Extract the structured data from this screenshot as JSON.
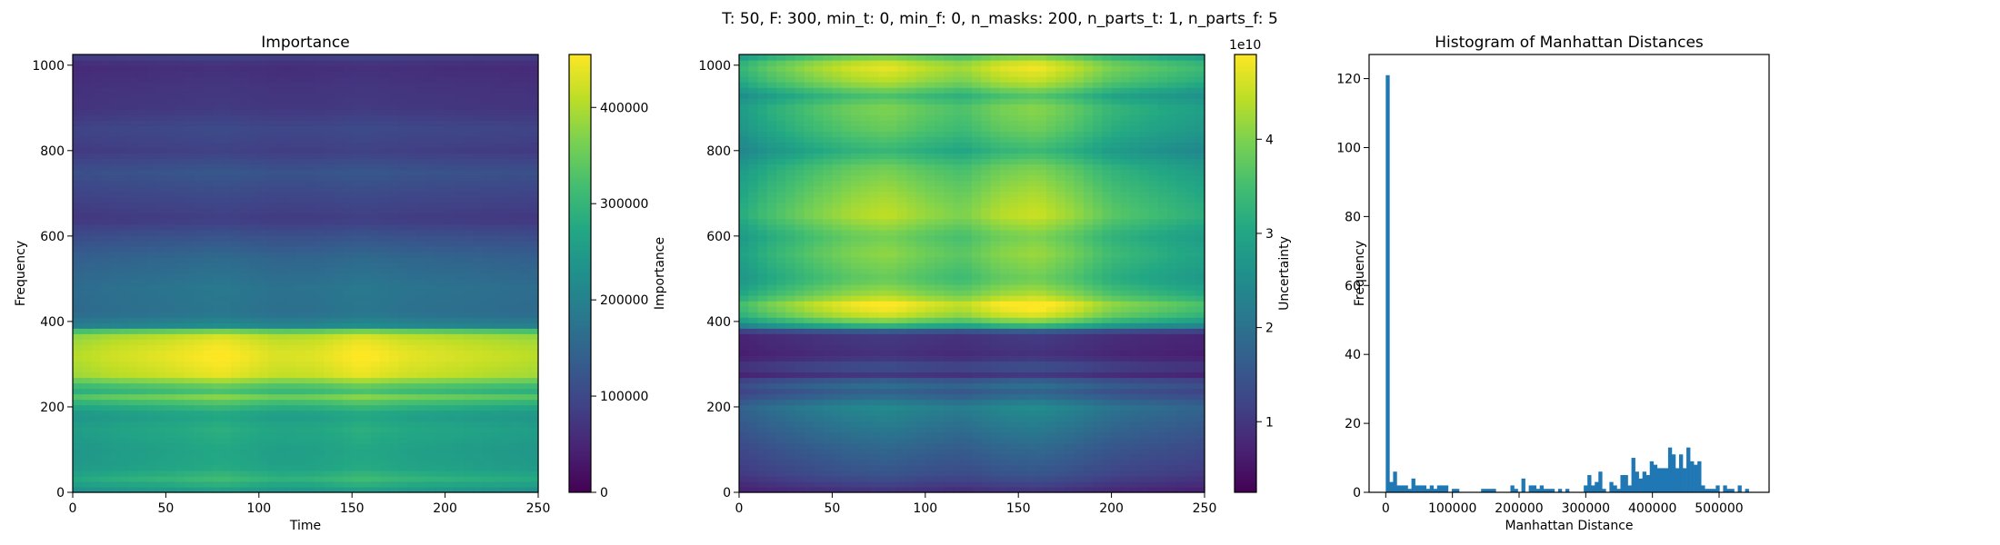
{
  "suptitle": "T: 50, F: 300, min_t: 0, min_f: 0, n_masks: 200, n_parts_t: 1, n_parts_f: 5",
  "chart_data": [
    {
      "type": "heatmap",
      "title": "Importance",
      "xlabel": "Time",
      "ylabel": "Frequency",
      "colorbar_label": "Importance",
      "colormap": "viridis",
      "xlim": [
        0,
        250
      ],
      "ylim": [
        0,
        1025
      ],
      "xticks": [
        0,
        50,
        100,
        150,
        200,
        250
      ],
      "yticks": [
        0,
        200,
        400,
        600,
        800,
        1000
      ],
      "clim": [
        0,
        455000
      ],
      "colorbar_ticks": [
        0,
        100000,
        200000,
        300000,
        400000
      ],
      "colorbar_ticklabels": [
        "0",
        "100000",
        "200000",
        "300000",
        "400000"
      ],
      "freq_profile": [
        [
          0,
          235000
        ],
        [
          30,
          300000
        ],
        [
          60,
          265000
        ],
        [
          100,
          260000
        ],
        [
          150,
          275000
        ],
        [
          180,
          255000
        ],
        [
          205,
          300000
        ],
        [
          225,
          360000
        ],
        [
          240,
          300000
        ],
        [
          275,
          420000
        ],
        [
          320,
          440000
        ],
        [
          350,
          425000
        ],
        [
          375,
          400000
        ],
        [
          385,
          220000
        ],
        [
          420,
          170000
        ],
        [
          480,
          175000
        ],
        [
          550,
          150000
        ],
        [
          600,
          115000
        ],
        [
          640,
          80000
        ],
        [
          700,
          100000
        ],
        [
          750,
          120000
        ],
        [
          800,
          85000
        ],
        [
          850,
          100000
        ],
        [
          900,
          75000
        ],
        [
          950,
          70000
        ],
        [
          1000,
          60000
        ],
        [
          1025,
          95000
        ]
      ],
      "time_profile": [
        [
          0,
          0.92
        ],
        [
          20,
          0.96
        ],
        [
          50,
          1.0
        ],
        [
          80,
          1.05
        ],
        [
          110,
          0.98
        ],
        [
          130,
          0.99
        ],
        [
          155,
          1.05
        ],
        [
          180,
          1.0
        ],
        [
          210,
          0.97
        ],
        [
          230,
          0.95
        ],
        [
          250,
          0.93
        ]
      ]
    },
    {
      "type": "heatmap",
      "title": "",
      "xlabel": "",
      "ylabel": "",
      "colorbar_label": "Uncertainty",
      "colorbar_offset_text": "1e10",
      "colormap": "viridis",
      "xlim": [
        0,
        250
      ],
      "ylim": [
        0,
        1025
      ],
      "xticks": [
        0,
        50,
        100,
        150,
        200,
        250
      ],
      "yticks": [
        0,
        200,
        400,
        600,
        800,
        1000
      ],
      "clim": [
        0.25,
        4.9
      ],
      "colorbar_ticks": [
        1,
        2,
        3,
        4
      ],
      "colorbar_ticklabels": [
        "1",
        "2",
        "3",
        "4"
      ],
      "freq_profile": [
        [
          0,
          0.8
        ],
        [
          40,
          1.3
        ],
        [
          100,
          1.6
        ],
        [
          150,
          1.9
        ],
        [
          200,
          2.2
        ],
        [
          235,
          1.5
        ],
        [
          255,
          1.8
        ],
        [
          275,
          0.9
        ],
        [
          295,
          1.3
        ],
        [
          320,
          0.8
        ],
        [
          350,
          0.9
        ],
        [
          375,
          0.95
        ],
        [
          385,
          2.6
        ],
        [
          410,
          4.0
        ],
        [
          440,
          4.5
        ],
        [
          460,
          3.9
        ],
        [
          500,
          3.4
        ],
        [
          560,
          3.7
        ],
        [
          600,
          3.5
        ],
        [
          650,
          4.0
        ],
        [
          700,
          3.8
        ],
        [
          760,
          3.5
        ],
        [
          800,
          3.0
        ],
        [
          850,
          3.4
        ],
        [
          900,
          3.6
        ],
        [
          930,
          3.2
        ],
        [
          960,
          3.9
        ],
        [
          1000,
          4.3
        ],
        [
          1025,
          3.4
        ]
      ],
      "time_profile": [
        [
          0,
          0.78
        ],
        [
          15,
          0.88
        ],
        [
          40,
          1.0
        ],
        [
          60,
          1.08
        ],
        [
          80,
          1.12
        ],
        [
          100,
          1.05
        ],
        [
          120,
          1.0
        ],
        [
          140,
          1.1
        ],
        [
          160,
          1.14
        ],
        [
          180,
          1.05
        ],
        [
          200,
          0.93
        ],
        [
          230,
          0.85
        ],
        [
          250,
          0.8
        ]
      ]
    },
    {
      "type": "bar",
      "title": "Histogram of Manhattan Distances",
      "xlabel": "Manhattan Distance",
      "ylabel": "Frequency",
      "xlim": [
        -25000,
        575000
      ],
      "ylim": [
        0,
        127
      ],
      "xticks": [
        0,
        100000,
        200000,
        300000,
        400000,
        500000
      ],
      "xticklabels": [
        "0",
        "100000",
        "200000",
        "300000",
        "400000",
        "500000"
      ],
      "yticks": [
        0,
        20,
        40,
        60,
        80,
        100,
        120
      ],
      "bar_color": "#1f77b4",
      "bin_start": 0,
      "bin_width": 5500,
      "counts": [
        121,
        3,
        6,
        2,
        2,
        2,
        1,
        4,
        2,
        2,
        2,
        1,
        2,
        1,
        2,
        2,
        2,
        0,
        1,
        1,
        0,
        0,
        0,
        0,
        0,
        0,
        1,
        1,
        1,
        1,
        0,
        0,
        0,
        0,
        2,
        1,
        0,
        4,
        0,
        2,
        2,
        1,
        2,
        1,
        1,
        1,
        0,
        1,
        0,
        1,
        0,
        0,
        0,
        0,
        2,
        5,
        2,
        3,
        6,
        1,
        0,
        3,
        2,
        1,
        5,
        5,
        2,
        10,
        6,
        4,
        6,
        5,
        9,
        8,
        7,
        7,
        7,
        13,
        11,
        7,
        11,
        7,
        13,
        9,
        8,
        9,
        2,
        1,
        1,
        1,
        2,
        0,
        2,
        1,
        1,
        0,
        2,
        0,
        1
      ]
    }
  ]
}
